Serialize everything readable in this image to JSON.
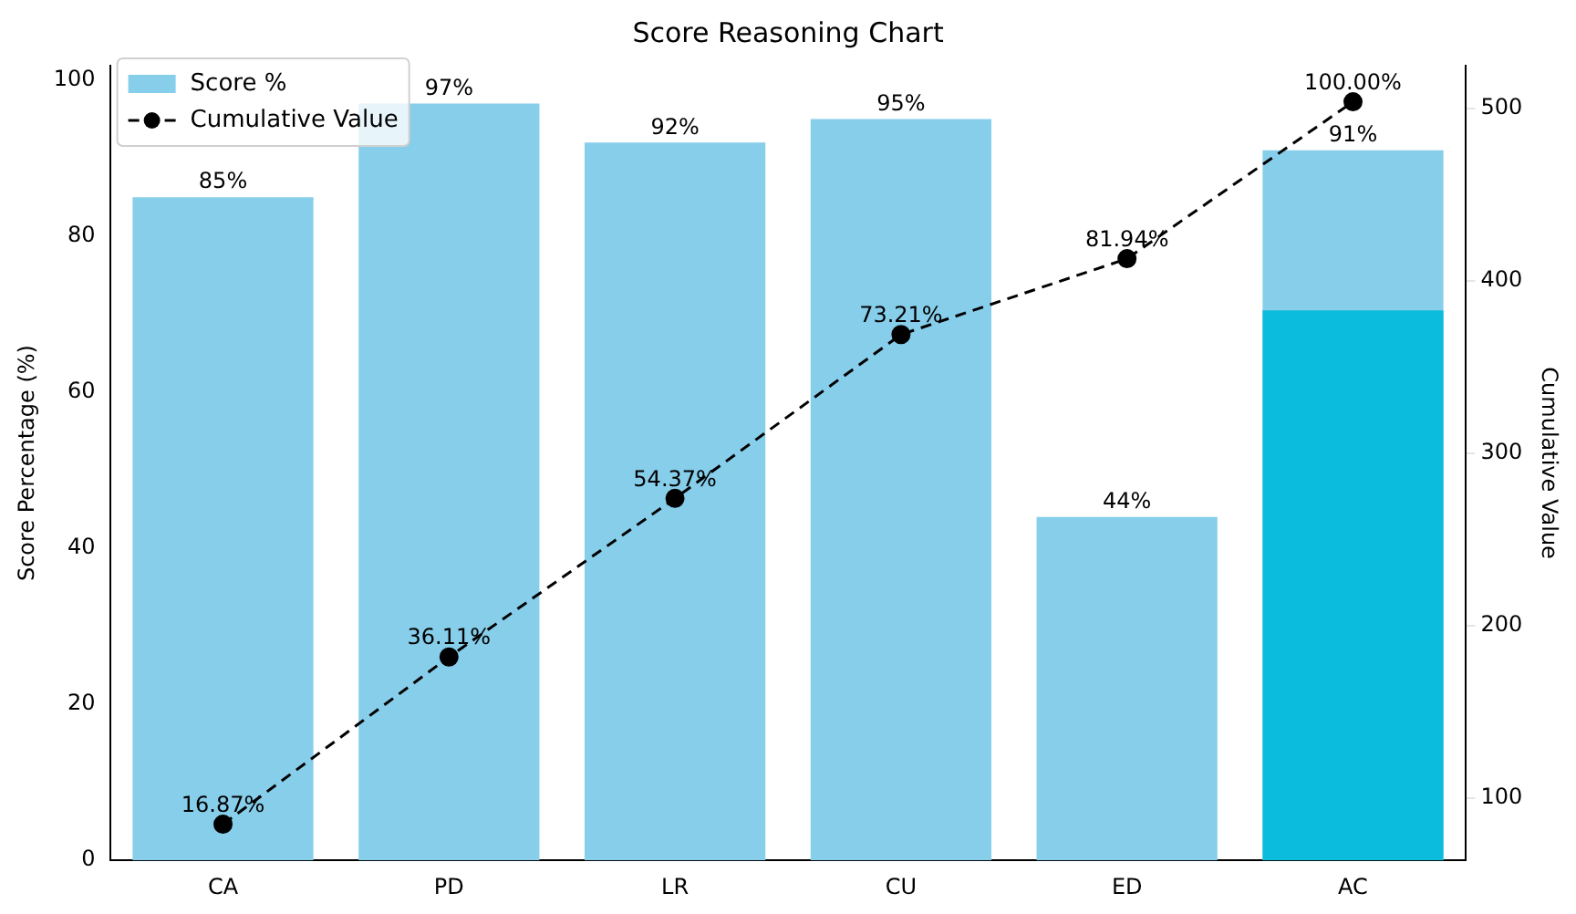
{
  "chart_data": {
    "type": "bar",
    "title": "Score Reasoning Chart",
    "ylabel": "Score Percentage (%)",
    "y2label": "Cumulative Value",
    "categories": [
      "CA",
      "PD",
      "LR",
      "CU",
      "ED",
      "AC"
    ],
    "series": [
      {
        "name": "Score %",
        "color": "#87ceeb",
        "values": [
          85,
          97,
          92,
          95,
          44,
          91
        ],
        "value_labels": [
          "85%",
          "97%",
          "92%",
          "95%",
          "44%",
          "91%"
        ]
      },
      {
        "color": "#0cbcdc",
        "values": [
          null,
          null,
          null,
          null,
          null,
          70.5
        ]
      },
      {
        "name": "Cumulative Value",
        "type": "line",
        "axis": "y2",
        "color": "#000000",
        "marker": "circle",
        "line_style": "dashed",
        "values": [
          85,
          182,
          274,
          369,
          413,
          504
        ]
      }
    ],
    "annotations": [
      "16.87%",
      "36.11%",
      "54.37%",
      "73.21%",
      "81.94%",
      "100.00%"
    ],
    "ylim": [
      0,
      101.85
    ],
    "yticks": [
      0,
      20,
      40,
      60,
      80,
      100
    ],
    "y2lim": [
      64.05,
      524.95
    ],
    "y2ticks": [
      100,
      200,
      300,
      400,
      500
    ],
    "legend": "top left",
    "grid": false
  }
}
